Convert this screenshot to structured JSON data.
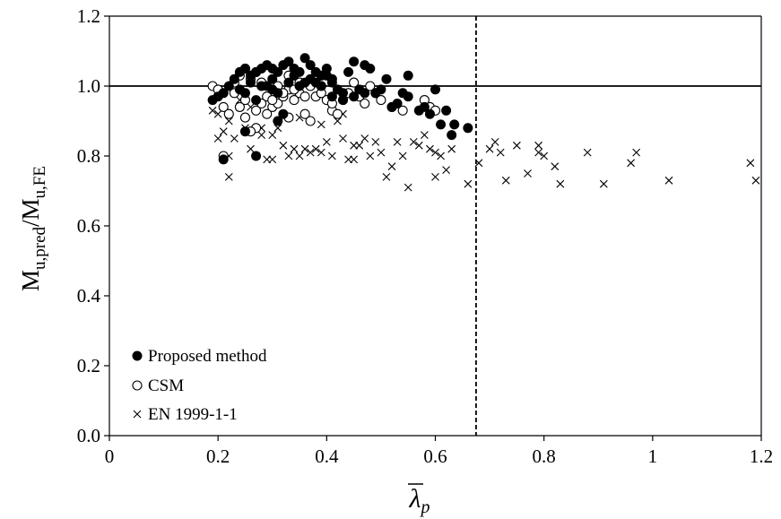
{
  "chart_data": {
    "type": "scatter",
    "title": "",
    "xlabel": "λp",
    "ylabel": "Mu,pred/Mu,FE",
    "xlim": [
      0,
      1.2
    ],
    "ylim": [
      0,
      1.2
    ],
    "x_ticks": [
      "0",
      "0.2",
      "0.4",
      "0.6",
      "0.8",
      "1",
      "1.2"
    ],
    "y_ticks": [
      "0.0",
      "0.2",
      "0.4",
      "0.6",
      "0.8",
      "1.0",
      "1.2"
    ],
    "grid": false,
    "legend_position": "bottom-left",
    "reference_lines": [
      {
        "orientation": "horizontal",
        "value": 1.0,
        "style": "solid"
      },
      {
        "orientation": "vertical",
        "value": 0.675,
        "style": "dashed"
      }
    ],
    "series": [
      {
        "name": "Proposed method",
        "marker": "filled-circle",
        "color": "#000000",
        "points": [
          [
            0.19,
            0.96
          ],
          [
            0.2,
            0.97
          ],
          [
            0.21,
            0.98
          ],
          [
            0.22,
            1.0
          ],
          [
            0.23,
            1.02
          ],
          [
            0.24,
            1.04
          ],
          [
            0.25,
            1.05
          ],
          [
            0.26,
            1.03
          ],
          [
            0.27,
            1.04
          ],
          [
            0.28,
            1.05
          ],
          [
            0.29,
            1.06
          ],
          [
            0.3,
            1.05
          ],
          [
            0.31,
            1.04
          ],
          [
            0.32,
            1.06
          ],
          [
            0.33,
            1.07
          ],
          [
            0.34,
            1.05
          ],
          [
            0.35,
            1.04
          ],
          [
            0.36,
            1.08
          ],
          [
            0.37,
            1.06
          ],
          [
            0.38,
            1.04
          ],
          [
            0.39,
            1.03
          ],
          [
            0.4,
            1.05
          ],
          [
            0.41,
            1.02
          ],
          [
            0.42,
            0.99
          ],
          [
            0.43,
            0.96
          ],
          [
            0.44,
            1.04
          ],
          [
            0.45,
            1.07
          ],
          [
            0.46,
            0.99
          ],
          [
            0.47,
            1.06
          ],
          [
            0.48,
            1.05
          ],
          [
            0.49,
            0.98
          ],
          [
            0.5,
            0.99
          ],
          [
            0.51,
            1.02
          ],
          [
            0.52,
            0.94
          ],
          [
            0.53,
            0.95
          ],
          [
            0.54,
            0.98
          ],
          [
            0.55,
            1.03
          ],
          [
            0.55,
            0.97
          ],
          [
            0.57,
            0.93
          ],
          [
            0.58,
            0.94
          ],
          [
            0.59,
            0.92
          ],
          [
            0.6,
            0.99
          ],
          [
            0.61,
            0.89
          ],
          [
            0.62,
            0.93
          ],
          [
            0.63,
            0.86
          ],
          [
            0.635,
            0.89
          ],
          [
            0.66,
            0.88
          ],
          [
            0.25,
            0.98
          ],
          [
            0.27,
            0.96
          ],
          [
            0.29,
            1.0
          ],
          [
            0.31,
            0.98
          ],
          [
            0.33,
            1.01
          ],
          [
            0.35,
            1.0
          ],
          [
            0.37,
            1.02
          ],
          [
            0.39,
            1.0
          ],
          [
            0.41,
            1.01
          ],
          [
            0.43,
            0.98
          ],
          [
            0.45,
            0.97
          ],
          [
            0.47,
            0.98
          ],
          [
            0.32,
            0.92
          ],
          [
            0.31,
            0.9
          ],
          [
            0.25,
            0.87
          ],
          [
            0.27,
            0.8
          ],
          [
            0.21,
            0.79
          ],
          [
            0.24,
            0.99
          ],
          [
            0.26,
            1.01
          ],
          [
            0.28,
            1.0
          ],
          [
            0.3,
            1.02
          ],
          [
            0.34,
            1.03
          ],
          [
            0.36,
            1.01
          ],
          [
            0.38,
            1.01
          ],
          [
            0.4,
            1.03
          ],
          [
            0.41,
            0.97
          ],
          [
            0.3,
            0.99
          ]
        ]
      },
      {
        "name": "CSM",
        "marker": "open-circle",
        "color": "#000000",
        "points": [
          [
            0.19,
            1.0
          ],
          [
            0.2,
            0.99
          ],
          [
            0.21,
            0.94
          ],
          [
            0.22,
            0.92
          ],
          [
            0.23,
            1.01
          ],
          [
            0.24,
            1.03
          ],
          [
            0.25,
            1.05
          ],
          [
            0.26,
            1.02
          ],
          [
            0.27,
            1.04
          ],
          [
            0.28,
            1.01
          ],
          [
            0.29,
            0.97
          ],
          [
            0.3,
            0.94
          ],
          [
            0.31,
            0.95
          ],
          [
            0.32,
            0.97
          ],
          [
            0.33,
            0.99
          ],
          [
            0.34,
            0.96
          ],
          [
            0.35,
            0.98
          ],
          [
            0.36,
            0.92
          ],
          [
            0.37,
            0.9
          ],
          [
            0.38,
            0.97
          ],
          [
            0.39,
            1.0
          ],
          [
            0.4,
            0.96
          ],
          [
            0.41,
            0.93
          ],
          [
            0.42,
            0.92
          ],
          [
            0.43,
            0.96
          ],
          [
            0.44,
            0.98
          ],
          [
            0.45,
            1.01
          ],
          [
            0.46,
            0.97
          ],
          [
            0.47,
            0.95
          ],
          [
            0.48,
            1.0
          ],
          [
            0.49,
            0.98
          ],
          [
            0.5,
            0.96
          ],
          [
            0.52,
            0.94
          ],
          [
            0.54,
            0.93
          ],
          [
            0.58,
            0.96
          ],
          [
            0.59,
            0.94
          ],
          [
            0.6,
            0.93
          ],
          [
            0.23,
            0.98
          ],
          [
            0.25,
            0.96
          ],
          [
            0.27,
            0.93
          ],
          [
            0.29,
            0.92
          ],
          [
            0.31,
            1.0
          ],
          [
            0.33,
            1.03
          ],
          [
            0.35,
            1.01
          ],
          [
            0.37,
            1.0
          ],
          [
            0.39,
            0.98
          ],
          [
            0.41,
            0.95
          ],
          [
            0.25,
            0.91
          ],
          [
            0.27,
            0.88
          ],
          [
            0.26,
            0.87
          ],
          [
            0.24,
            0.94
          ],
          [
            0.28,
            0.95
          ],
          [
            0.3,
            0.96
          ],
          [
            0.32,
            0.98
          ],
          [
            0.34,
            0.99
          ],
          [
            0.36,
            0.97
          ],
          [
            0.38,
            1.02
          ],
          [
            0.21,
            0.8
          ],
          [
            0.33,
            0.91
          ]
        ]
      },
      {
        "name": "EN 1999-1-1",
        "marker": "x",
        "color": "#000000",
        "points": [
          [
            0.19,
            0.93
          ],
          [
            0.2,
            0.92
          ],
          [
            0.21,
            0.87
          ],
          [
            0.22,
            0.9
          ],
          [
            0.23,
            0.85
          ],
          [
            0.24,
            0.94
          ],
          [
            0.25,
            0.88
          ],
          [
            0.26,
            0.82
          ],
          [
            0.27,
            0.8
          ],
          [
            0.28,
            0.86
          ],
          [
            0.29,
            0.79
          ],
          [
            0.3,
            0.79
          ],
          [
            0.31,
            0.88
          ],
          [
            0.32,
            0.83
          ],
          [
            0.33,
            0.8
          ],
          [
            0.34,
            0.82
          ],
          [
            0.35,
            0.8
          ],
          [
            0.36,
            0.82
          ],
          [
            0.37,
            0.81
          ],
          [
            0.38,
            0.82
          ],
          [
            0.39,
            0.81
          ],
          [
            0.4,
            0.84
          ],
          [
            0.41,
            0.8
          ],
          [
            0.42,
            0.9
          ],
          [
            0.43,
            0.85
          ],
          [
            0.44,
            0.79
          ],
          [
            0.45,
            0.79
          ],
          [
            0.46,
            0.83
          ],
          [
            0.47,
            0.85
          ],
          [
            0.48,
            0.8
          ],
          [
            0.49,
            0.84
          ],
          [
            0.5,
            0.81
          ],
          [
            0.51,
            0.74
          ],
          [
            0.52,
            0.77
          ],
          [
            0.53,
            0.84
          ],
          [
            0.54,
            0.8
          ],
          [
            0.55,
            0.71
          ],
          [
            0.56,
            0.84
          ],
          [
            0.57,
            0.83
          ],
          [
            0.58,
            0.86
          ],
          [
            0.59,
            0.82
          ],
          [
            0.6,
            0.74
          ],
          [
            0.61,
            0.8
          ],
          [
            0.62,
            0.76
          ],
          [
            0.63,
            0.82
          ],
          [
            0.66,
            0.72
          ],
          [
            0.68,
            0.78
          ],
          [
            0.7,
            0.82
          ],
          [
            0.71,
            0.84
          ],
          [
            0.72,
            0.81
          ],
          [
            0.73,
            0.73
          ],
          [
            0.75,
            0.83
          ],
          [
            0.77,
            0.75
          ],
          [
            0.79,
            0.83
          ],
          [
            0.8,
            0.8
          ],
          [
            0.82,
            0.77
          ],
          [
            0.83,
            0.72
          ],
          [
            0.88,
            0.81
          ],
          [
            0.91,
            0.72
          ],
          [
            0.96,
            0.78
          ],
          [
            0.97,
            0.81
          ],
          [
            1.03,
            0.73
          ],
          [
            1.18,
            0.78
          ],
          [
            1.19,
            0.73
          ],
          [
            0.22,
            0.74
          ],
          [
            0.24,
            0.96
          ],
          [
            0.26,
            0.94
          ],
          [
            0.28,
            0.88
          ],
          [
            0.3,
            0.86
          ],
          [
            0.35,
            0.91
          ],
          [
            0.39,
            0.89
          ],
          [
            0.43,
            0.92
          ],
          [
            0.2,
            0.85
          ],
          [
            0.22,
            0.8
          ],
          [
            0.45,
            0.83
          ],
          [
            0.6,
            0.81
          ],
          [
            0.79,
            0.81
          ]
        ]
      }
    ]
  }
}
